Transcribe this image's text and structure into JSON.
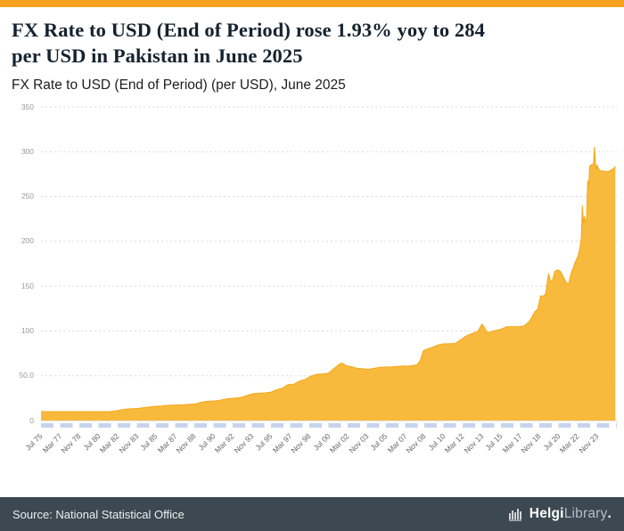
{
  "page": {
    "title_line1": "FX Rate to USD (End of Period) rose 1.93% yoy to 284",
    "title_line2": "per USD in Pakistan in June 2025",
    "subtitle": "FX Rate to USD (End of Period) (per USD), June 2025"
  },
  "footer": {
    "source": "Source: National Statistical Office",
    "logo_text_bold": "Helgi",
    "logo_text_light": "Library",
    "logo_suffix": "."
  },
  "colors": {
    "accent_orange": "#F6A21E",
    "area_fill": "#F8BA3C",
    "area_edge": "#F2A71B",
    "grid": "#D9D9D9",
    "zero_line": "#C8C8C8",
    "tick_strip_blue": "#C7D3EE",
    "footer_bg": "#3C4952",
    "title_text": "#15222E",
    "label_text": "#666666"
  },
  "chart_data": {
    "type": "area",
    "title": "FX Rate to USD (End of Period) (per USD), June 2025",
    "xlabel": "",
    "ylabel": "",
    "grid": true,
    "legend": false,
    "ylim": [
      0,
      350
    ],
    "xlim": [
      1975.542,
      2025.58
    ],
    "y_ticks": [
      {
        "label": "0",
        "value": 0
      },
      {
        "label": "50.0",
        "value": 50
      },
      {
        "label": "100",
        "value": 100
      },
      {
        "label": "150",
        "value": 150
      },
      {
        "label": "200",
        "value": 200
      },
      {
        "label": "250",
        "value": 250
      },
      {
        "label": "300",
        "value": 300
      },
      {
        "label": "350",
        "value": 350
      }
    ],
    "x_ticks": [
      {
        "label": "Jul 75",
        "x": 1975.542
      },
      {
        "label": "Mar 77",
        "x": 1977.208
      },
      {
        "label": "Nov 78",
        "x": 1978.875
      },
      {
        "label": "Jul 80",
        "x": 1980.542
      },
      {
        "label": "Mar 82",
        "x": 1982.208
      },
      {
        "label": "Nov 83",
        "x": 1983.875
      },
      {
        "label": "Jul 85",
        "x": 1985.542
      },
      {
        "label": "Mar 87",
        "x": 1987.208
      },
      {
        "label": "Nov 88",
        "x": 1988.875
      },
      {
        "label": "Jul 90",
        "x": 1990.542
      },
      {
        "label": "Mar 92",
        "x": 1992.208
      },
      {
        "label": "Nov 93",
        "x": 1993.875
      },
      {
        "label": "Jul 95",
        "x": 1995.542
      },
      {
        "label": "Mar 97",
        "x": 1997.208
      },
      {
        "label": "Nov 98",
        "x": 1998.875
      },
      {
        "label": "Jul 00",
        "x": 2000.542
      },
      {
        "label": "Mar 02",
        "x": 2002.208
      },
      {
        "label": "Nov 03",
        "x": 2003.875
      },
      {
        "label": "Jul 05",
        "x": 2005.542
      },
      {
        "label": "Mar 07",
        "x": 2007.208
      },
      {
        "label": "Nov 08",
        "x": 2008.875
      },
      {
        "label": "Jul 10",
        "x": 2010.542
      },
      {
        "label": "Mar 12",
        "x": 2012.208
      },
      {
        "label": "Nov 13",
        "x": 2013.875
      },
      {
        "label": "Jul 15",
        "x": 2015.542
      },
      {
        "label": "Mar 17",
        "x": 2017.208
      },
      {
        "label": "Nov 18",
        "x": 2018.875
      },
      {
        "label": "Jul 20",
        "x": 2020.542
      },
      {
        "label": "Mar 22",
        "x": 2022.208
      },
      {
        "label": "Nov 23",
        "x": 2023.875
      }
    ],
    "series": [
      {
        "name": "FX Rate to USD (End of Period)",
        "points": [
          [
            1975.542,
            9.9
          ],
          [
            1976.5,
            9.9
          ],
          [
            1977.5,
            9.9
          ],
          [
            1978.5,
            9.9
          ],
          [
            1979.5,
            9.9
          ],
          [
            1980.5,
            9.9
          ],
          [
            1981.5,
            9.9
          ],
          [
            1982.0,
            10.6
          ],
          [
            1982.5,
            11.9
          ],
          [
            1983.0,
            12.8
          ],
          [
            1983.5,
            13.1
          ],
          [
            1984.0,
            13.5
          ],
          [
            1984.5,
            14.4
          ],
          [
            1985.0,
            15.2
          ],
          [
            1985.5,
            15.9
          ],
          [
            1986.0,
            16.1
          ],
          [
            1986.5,
            16.9
          ],
          [
            1987.0,
            17.2
          ],
          [
            1987.5,
            17.45
          ],
          [
            1988.0,
            17.6
          ],
          [
            1988.5,
            18.2
          ],
          [
            1989.0,
            18.65
          ],
          [
            1989.5,
            20.5
          ],
          [
            1990.0,
            21.45
          ],
          [
            1990.5,
            21.75
          ],
          [
            1991.0,
            22.42
          ],
          [
            1991.5,
            23.8
          ],
          [
            1992.0,
            24.72
          ],
          [
            1992.5,
            25.1
          ],
          [
            1993.0,
            25.96
          ],
          [
            1993.5,
            28.2
          ],
          [
            1994.0,
            30.16
          ],
          [
            1994.5,
            30.5
          ],
          [
            1995.0,
            30.85
          ],
          [
            1995.5,
            31.6
          ],
          [
            1996.0,
            34.25
          ],
          [
            1996.5,
            36.0
          ],
          [
            1997.0,
            40.12
          ],
          [
            1997.5,
            40.5
          ],
          [
            1998.0,
            44.05
          ],
          [
            1998.5,
            46.0
          ],
          [
            1999.0,
            49.5
          ],
          [
            1999.5,
            51.6
          ],
          [
            2000.0,
            51.9
          ],
          [
            2000.5,
            52.8
          ],
          [
            2001.0,
            58.0
          ],
          [
            2001.5,
            63.0
          ],
          [
            2001.7,
            64.2
          ],
          [
            2002.0,
            61.4
          ],
          [
            2002.5,
            60.1
          ],
          [
            2003.0,
            58.25
          ],
          [
            2003.5,
            57.8
          ],
          [
            2004.0,
            57.2
          ],
          [
            2004.5,
            58.3
          ],
          [
            2005.0,
            59.35
          ],
          [
            2005.5,
            59.7
          ],
          [
            2006.0,
            59.85
          ],
          [
            2006.5,
            60.25
          ],
          [
            2007.0,
            60.9
          ],
          [
            2007.5,
            60.65
          ],
          [
            2008.0,
            61.6
          ],
          [
            2008.25,
            62.5
          ],
          [
            2008.5,
            67.0
          ],
          [
            2008.75,
            77.5
          ],
          [
            2008.95,
            79.1
          ],
          [
            2009.5,
            81.4
          ],
          [
            2010.0,
            84.2
          ],
          [
            2010.5,
            85.6
          ],
          [
            2011.0,
            85.75
          ],
          [
            2011.5,
            86.0
          ],
          [
            2012.0,
            89.95
          ],
          [
            2012.5,
            94.5
          ],
          [
            2013.0,
            97.15
          ],
          [
            2013.5,
            99.65
          ],
          [
            2013.85,
            107.5
          ],
          [
            2014.0,
            105.3
          ],
          [
            2014.3,
            98.3
          ],
          [
            2014.6,
            98.8
          ],
          [
            2015.0,
            100.4
          ],
          [
            2015.5,
            101.8
          ],
          [
            2016.0,
            104.7
          ],
          [
            2016.5,
            104.8
          ],
          [
            2017.0,
            104.6
          ],
          [
            2017.5,
            105.4
          ],
          [
            2017.95,
            110.4
          ],
          [
            2018.2,
            115.6
          ],
          [
            2018.45,
            121.5
          ],
          [
            2018.7,
            124.2
          ],
          [
            2018.95,
            139.1
          ],
          [
            2019.2,
            139.0
          ],
          [
            2019.4,
            141.5
          ],
          [
            2019.55,
            157.0
          ],
          [
            2019.65,
            164.0
          ],
          [
            2019.8,
            156.5
          ],
          [
            2019.95,
            154.9
          ],
          [
            2020.2,
            166.7
          ],
          [
            2020.45,
            168.2
          ],
          [
            2020.7,
            166.0
          ],
          [
            2020.95,
            160.0
          ],
          [
            2021.2,
            153.5
          ],
          [
            2021.4,
            152.8
          ],
          [
            2021.6,
            164.5
          ],
          [
            2021.8,
            170.8
          ],
          [
            2021.95,
            176.5
          ],
          [
            2022.2,
            183.5
          ],
          [
            2022.35,
            191.0
          ],
          [
            2022.5,
            204.8
          ],
          [
            2022.58,
            239.9
          ],
          [
            2022.67,
            218.9
          ],
          [
            2022.75,
            228.0
          ],
          [
            2022.83,
            220.9
          ],
          [
            2022.95,
            226.4
          ],
          [
            2023.05,
            267.9
          ],
          [
            2023.13,
            261.5
          ],
          [
            2023.22,
            283.8
          ],
          [
            2023.35,
            285.5
          ],
          [
            2023.45,
            286.0
          ],
          [
            2023.55,
            286.6
          ],
          [
            2023.63,
            305.5
          ],
          [
            2023.72,
            287.7
          ],
          [
            2023.8,
            280.6
          ],
          [
            2023.88,
            285.2
          ],
          [
            2023.95,
            281.9
          ],
          [
            2024.1,
            279.2
          ],
          [
            2024.3,
            278.3
          ],
          [
            2024.5,
            278.5
          ],
          [
            2024.7,
            277.7
          ],
          [
            2024.95,
            278.4
          ],
          [
            2025.1,
            279.8
          ],
          [
            2025.25,
            280.5
          ],
          [
            2025.45,
            283.7
          ]
        ]
      }
    ]
  }
}
